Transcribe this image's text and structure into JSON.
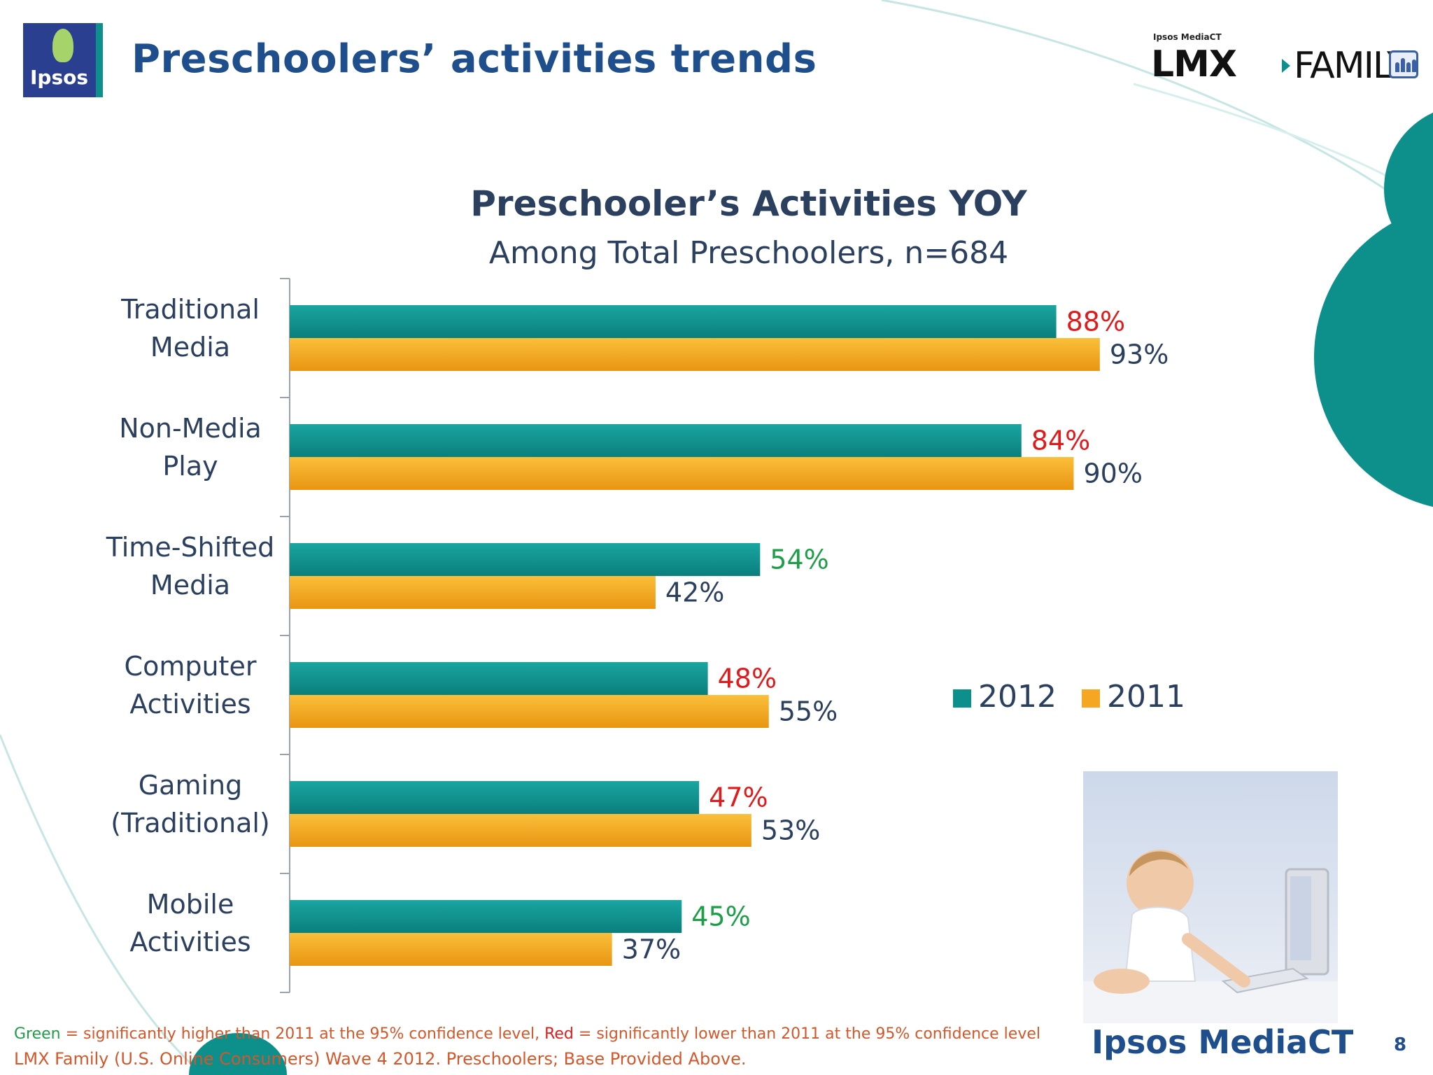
{
  "slide": {
    "title": "Preschoolers’ activities trends",
    "page_number": "8"
  },
  "brand": {
    "ipsos_logo": "Ipsos",
    "lmx_small": "Ipsos MediaCT",
    "lmx_main": "LMX",
    "lmx_family": "FAMILY",
    "photo_caption": "Ipsos MediaCT"
  },
  "colors": {
    "teal": "#0d8f8c",
    "orange": "#f5a623",
    "green_sig": "#1f9e4a",
    "red_sig": "#e01b1b",
    "label": "#2b3f5e"
  },
  "chart_data": {
    "type": "bar",
    "orientation": "horizontal",
    "title": "Preschooler’s Activities YOY",
    "subtitle": "Among Total Preschoolers, n=684",
    "categories": [
      [
        "Traditional",
        "Media"
      ],
      [
        "Non-Media",
        "Play"
      ],
      [
        "Time-Shifted",
        "Media"
      ],
      [
        "Computer",
        "Activities"
      ],
      [
        "Gaming",
        "(Traditional)"
      ],
      [
        "Mobile",
        "Activities"
      ]
    ],
    "series": [
      {
        "name": "2012",
        "color": "#0d8f8c",
        "values": [
          88,
          84,
          54,
          48,
          47,
          45
        ],
        "labels": [
          "88%",
          "84%",
          "54%",
          "48%",
          "47%",
          "45%"
        ],
        "label_colors": [
          "red",
          "red",
          "green",
          "red",
          "red",
          "green"
        ]
      },
      {
        "name": "2011",
        "color": "#f5a623",
        "values": [
          93,
          90,
          42,
          55,
          53,
          37
        ],
        "labels": [
          "93%",
          "90%",
          "42%",
          "55%",
          "53%",
          "37%"
        ],
        "label_colors": [
          "default",
          "default",
          "default",
          "default",
          "default",
          "default"
        ]
      }
    ],
    "xlim": [
      0,
      100
    ],
    "legend": "right",
    "grid": false
  },
  "footnote": {
    "green_word": "Green",
    "green_text": " = significantly higher than 2011 at the 95% confidence level, ",
    "red_word": "Red",
    "red_text": " = significantly lower than 2011 at the 95% confidence level"
  },
  "source": "LMX Family (U.S. Online Consumers) Wave 4 2012.  Preschoolers; Base Provided Above."
}
